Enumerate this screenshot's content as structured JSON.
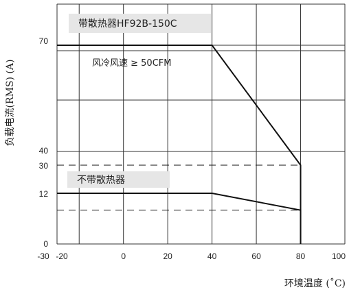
{
  "chart_data": {
    "type": "line",
    "xlabel": "环境温度 (˚C)",
    "ylabel": "负载电流(RMS) (A)",
    "xlim": [
      -30,
      100
    ],
    "ylim": [
      0,
      80
    ],
    "x_ticks": [
      "-30",
      "-20",
      "0",
      "20",
      "40",
      "60",
      "80",
      "100"
    ],
    "y_ticks": [
      "0",
      "12",
      "30",
      "40",
      "70"
    ],
    "grid": true,
    "series": [
      {
        "name": "带散热器HF92B-150C",
        "line_style": "solid",
        "x": [
          -30,
          40,
          80,
          80
        ],
        "y": [
          70,
          70,
          30,
          0
        ]
      },
      {
        "name": "不带散热器",
        "line_style": "solid",
        "x": [
          -30,
          40,
          80,
          80
        ],
        "y": [
          12,
          12,
          8,
          0
        ]
      }
    ],
    "reference_lines": [
      {
        "style": "dashed",
        "y": 30,
        "x_range": [
          -30,
          80
        ]
      },
      {
        "style": "dashed",
        "y": 8,
        "x_range": [
          -30,
          80
        ]
      }
    ],
    "annotations": [
      {
        "text": "风冷风速 ≥ 50CFM"
      }
    ]
  },
  "colors": {
    "line": "#111111",
    "grid": "#333333",
    "label_box": "#e6e6e6",
    "background": "#ffffff"
  }
}
